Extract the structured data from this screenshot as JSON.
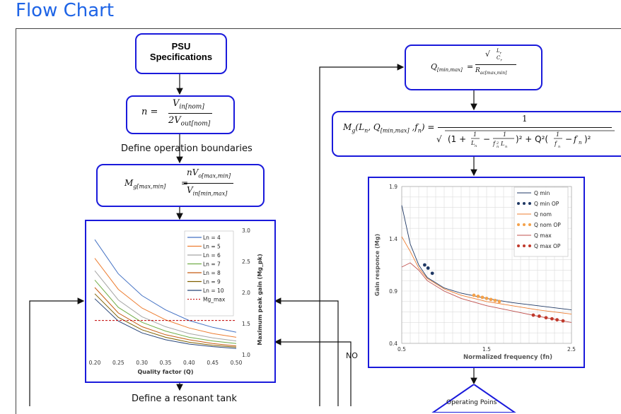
{
  "page": {
    "title": "Flow Chart"
  },
  "boxes": {
    "psu_line1": "PSU",
    "psu_line2": "Specifications",
    "n_formula": {
      "lhs": "n =",
      "num": "V",
      "num_sub": "in[nom]",
      "den": "2V",
      "den_sub": "out[nom]"
    },
    "mg_formula": {
      "lhs": "M",
      "lhs_sub": "g[max,min]",
      "eq": "=",
      "num": "nV",
      "num_sub": "o[max,min]",
      "den": "V",
      "den_sub": "in[min,max]"
    },
    "q_formula": {
      "lhs": "Q",
      "lhs_sub": "[min,max]",
      "eq": "=",
      "num_top": "L",
      "num_top_sub": "r",
      "num_bot": "C",
      "num_bot_sub": "r",
      "den": "R",
      "den_sub": "ac[max,min]"
    },
    "gain_formula": {
      "lhs": "M",
      "lhs_sub": "g",
      "args": "(L",
      "args_sub": "n",
      "args2": ", Q",
      "args2_sub": "[min,max]",
      "args3": " ,f",
      "args3_sub": "n",
      "args4": ") =",
      "num": "1"
    }
  },
  "labels": {
    "define_boundaries": "Define operation boundaries",
    "define_tank": "Define a resonant tank",
    "no": "NO",
    "operating_points": "Operating Poins"
  },
  "chart_data": [
    {
      "type": "line",
      "xlabel": "Quality factor (Q)",
      "ylabel": "Maximum peak gain (Mg_pk)",
      "xlim": [
        0.2,
        0.5
      ],
      "ylim": [
        1.0,
        3.0
      ],
      "x_ticks": [
        "0.20",
        "0.25",
        "0.30",
        "0.35",
        "0.40",
        "0.45",
        "0.50"
      ],
      "y_ticks": [
        "1.0",
        "1.5",
        "2.0",
        "2.5",
        "3.0"
      ],
      "y_axis_side": "right",
      "grid": false,
      "legend_position": "top-right",
      "series": [
        {
          "name": "Ln = 4",
          "color": "#4472c4",
          "x": [
            0.2,
            0.25,
            0.3,
            0.35,
            0.4,
            0.45,
            0.5
          ],
          "values": [
            2.85,
            2.3,
            1.95,
            1.72,
            1.55,
            1.44,
            1.36
          ]
        },
        {
          "name": "Ln = 5",
          "color": "#ed7d31",
          "x": [
            0.2,
            0.25,
            0.3,
            0.35,
            0.4,
            0.45,
            0.5
          ],
          "values": [
            2.55,
            2.05,
            1.75,
            1.56,
            1.43,
            1.34,
            1.28
          ]
        },
        {
          "name": "Ln = 6",
          "color": "#a5a5a5",
          "x": [
            0.2,
            0.25,
            0.3,
            0.35,
            0.4,
            0.45,
            0.5
          ],
          "values": [
            2.35,
            1.88,
            1.61,
            1.45,
            1.34,
            1.27,
            1.22
          ]
        },
        {
          "name": "Ln = 7",
          "color": "#70ad47",
          "x": [
            0.2,
            0.25,
            0.3,
            0.35,
            0.4,
            0.45,
            0.5
          ],
          "values": [
            2.2,
            1.76,
            1.52,
            1.38,
            1.28,
            1.22,
            1.18
          ]
        },
        {
          "name": "Ln = 8",
          "color": "#c55a11",
          "x": [
            0.2,
            0.25,
            0.3,
            0.35,
            0.4,
            0.45,
            0.5
          ],
          "values": [
            2.08,
            1.67,
            1.45,
            1.32,
            1.24,
            1.18,
            1.14
          ]
        },
        {
          "name": "Ln = 9",
          "color": "#7f6000",
          "x": [
            0.2,
            0.25,
            0.3,
            0.35,
            0.4,
            0.45,
            0.5
          ],
          "values": [
            1.98,
            1.6,
            1.4,
            1.28,
            1.2,
            1.15,
            1.12
          ]
        },
        {
          "name": "Ln = 10",
          "color": "#264478",
          "x": [
            0.2,
            0.25,
            0.3,
            0.35,
            0.4,
            0.45,
            0.5
          ],
          "values": [
            1.9,
            1.54,
            1.35,
            1.24,
            1.17,
            1.13,
            1.1
          ]
        }
      ],
      "hline": {
        "name": "Mg_max",
        "color": "#c00000",
        "value": 1.55
      }
    },
    {
      "type": "line",
      "xlabel": "Normalized frequency (fn)",
      "ylabel": "Gain responce (Mg)",
      "xlim": [
        0.5,
        2.5
      ],
      "ylim": [
        0.4,
        1.9
      ],
      "x_ticks": [
        "0.5",
        "1.5",
        "2.5"
      ],
      "y_ticks": [
        "0.4",
        "0.9",
        "1.4",
        "1.9"
      ],
      "grid": true,
      "legend_position": "top-right",
      "series": [
        {
          "name": "Q min",
          "color": "#1f3864",
          "style": "line",
          "x": [
            0.5,
            0.6,
            0.7,
            0.8,
            1.0,
            1.2,
            1.5,
            1.8,
            2.1,
            2.5
          ],
          "values": [
            1.72,
            1.35,
            1.15,
            1.03,
            0.93,
            0.88,
            0.83,
            0.79,
            0.76,
            0.72
          ]
        },
        {
          "name": "Q min OP",
          "color": "#1f3864",
          "style": "dots",
          "x": [
            0.77,
            0.81,
            0.86
          ],
          "values": [
            1.15,
            1.12,
            1.07
          ]
        },
        {
          "name": "Q nom",
          "color": "#ed7d31",
          "style": "line",
          "x": [
            0.5,
            0.6,
            0.7,
            0.8,
            1.0,
            1.2,
            1.5,
            1.8,
            2.1,
            2.5
          ],
          "values": [
            1.42,
            1.28,
            1.12,
            1.02,
            0.92,
            0.86,
            0.8,
            0.76,
            0.72,
            0.68
          ]
        },
        {
          "name": "Q nom OP",
          "color": "#f4a14a",
          "style": "dots",
          "x": [
            1.35,
            1.4,
            1.45,
            1.5,
            1.55,
            1.6,
            1.65
          ],
          "values": [
            0.86,
            0.85,
            0.84,
            0.83,
            0.82,
            0.81,
            0.8
          ]
        },
        {
          "name": "Q max",
          "color": "#c0504d",
          "style": "line",
          "x": [
            0.5,
            0.6,
            0.7,
            0.8,
            1.0,
            1.2,
            1.5,
            1.8,
            2.1,
            2.5
          ],
          "values": [
            1.13,
            1.17,
            1.1,
            1.0,
            0.9,
            0.83,
            0.76,
            0.71,
            0.66,
            0.6
          ]
        },
        {
          "name": "Q max OP",
          "color": "#c0392b",
          "style": "dots",
          "x": [
            2.05,
            2.12,
            2.2,
            2.27,
            2.33,
            2.4
          ],
          "values": [
            0.67,
            0.66,
            0.645,
            0.635,
            0.625,
            0.615
          ]
        }
      ]
    }
  ]
}
